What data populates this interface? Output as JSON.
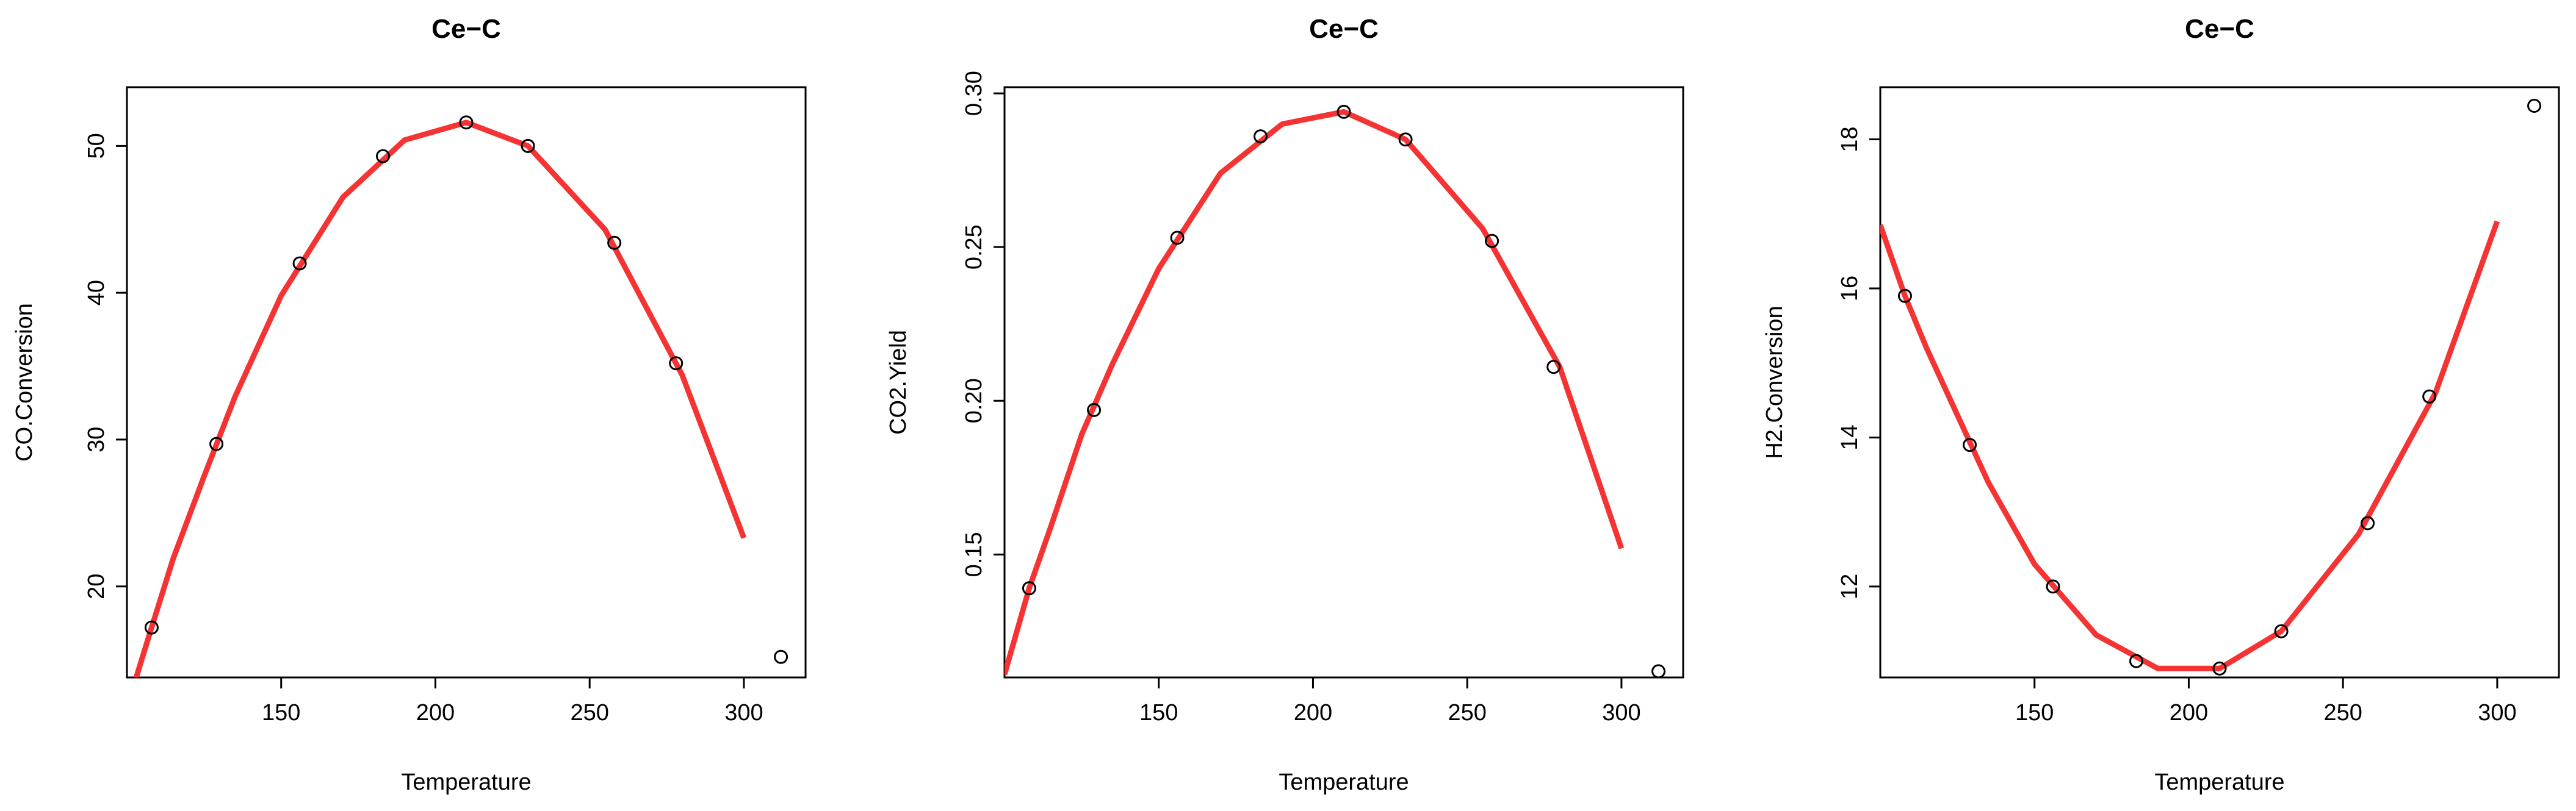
{
  "chart_data": [
    {
      "type": "scatter",
      "title": "Ce−C",
      "xlabel": "Temperature",
      "ylabel": "CO.Conversion",
      "xlim": [
        100,
        320
      ],
      "ylim": [
        13.8,
        54.0
      ],
      "x_ticks": [
        150,
        200,
        250,
        300
      ],
      "y_ticks": [
        20,
        30,
        40,
        50
      ],
      "points": {
        "x": [
          108,
          129,
          156,
          183,
          210,
          230,
          258,
          278,
          312
        ],
        "y": [
          17.2,
          29.7,
          42.0,
          49.3,
          51.6,
          50.0,
          43.4,
          35.2,
          15.2
        ]
      },
      "fit_line": {
        "x": [
          103,
          108,
          115,
          125,
          135,
          150,
          170,
          190,
          210,
          230,
          255,
          280,
          300
        ],
        "y": [
          13.8,
          17.2,
          21.9,
          27.5,
          32.9,
          39.8,
          46.5,
          50.4,
          51.6,
          50.0,
          44.3,
          34.4,
          23.3
        ]
      },
      "point_color": "#000000",
      "line_color": "#f53333",
      "grid": false
    },
    {
      "type": "scatter",
      "title": "Ce−C",
      "xlabel": "Temperature",
      "ylabel": "CO2.Yield",
      "xlim": [
        100,
        320
      ],
      "ylim": [
        0.11,
        0.302
      ],
      "x_ticks": [
        150,
        200,
        250,
        300
      ],
      "y_ticks": [
        0.15,
        0.2,
        0.25,
        0.3
      ],
      "y_tick_labels": [
        "0.15",
        "0.20",
        "0.25",
        "0.30"
      ],
      "points": {
        "x": [
          108,
          129,
          156,
          183,
          210,
          230,
          258,
          278,
          312
        ],
        "y": [
          0.139,
          0.197,
          0.253,
          0.286,
          0.294,
          0.285,
          0.252,
          0.211,
          0.112
        ]
      },
      "fit_line": {
        "x": [
          100,
          108,
          115,
          125,
          135,
          150,
          170,
          190,
          210,
          230,
          255,
          280,
          300
        ],
        "y": [
          0.111,
          0.139,
          0.159,
          0.189,
          0.212,
          0.243,
          0.274,
          0.29,
          0.294,
          0.285,
          0.256,
          0.211,
          0.152
        ]
      },
      "point_color": "#000000",
      "line_color": "#f53333",
      "grid": false
    },
    {
      "type": "scatter",
      "title": "Ce−C",
      "xlabel": "Temperature",
      "ylabel": "H2.Conversion",
      "xlim": [
        100,
        320
      ],
      "ylim": [
        10.78,
        18.7
      ],
      "x_ticks": [
        150,
        200,
        250,
        300
      ],
      "y_ticks": [
        12,
        14,
        16,
        18
      ],
      "points": {
        "x": [
          108,
          129,
          156,
          183,
          210,
          230,
          258,
          278,
          312
        ],
        "y": [
          15.9,
          13.9,
          12.0,
          11.0,
          10.9,
          11.4,
          12.85,
          14.55,
          18.45
        ]
      },
      "fit_line": {
        "x": [
          100,
          108,
          115,
          125,
          135,
          150,
          170,
          190,
          210,
          230,
          255,
          280,
          300
        ],
        "y": [
          16.85,
          15.9,
          15.2,
          14.3,
          13.4,
          12.3,
          11.35,
          10.9,
          10.9,
          11.4,
          12.7,
          14.6,
          16.9
        ]
      },
      "point_color": "#000000",
      "line_color": "#f53333",
      "grid": false
    }
  ]
}
